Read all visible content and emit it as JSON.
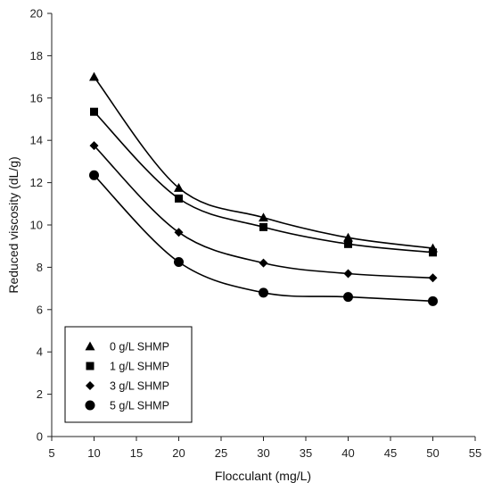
{
  "chart_data": {
    "type": "scatter",
    "xlabel": "Flocculant (mg/L)",
    "ylabel": "Reduced viscosity (dL/g)",
    "xlim": [
      5,
      55
    ],
    "ylim": [
      0,
      20
    ],
    "xticks": [
      5,
      10,
      15,
      20,
      25,
      30,
      35,
      40,
      45,
      50,
      55
    ],
    "yticks": [
      0,
      2,
      4,
      6,
      8,
      10,
      12,
      14,
      16,
      18,
      20
    ],
    "grid": false,
    "legend_position": "bottom-left",
    "x": [
      10,
      20,
      30,
      40,
      50
    ],
    "series": [
      {
        "name": "0 g/L SHMP",
        "marker": "triangle",
        "values": [
          17.0,
          11.75,
          10.35,
          9.4,
          8.9
        ]
      },
      {
        "name": "1 g/L SHMP",
        "marker": "square",
        "values": [
          15.35,
          11.25,
          9.9,
          9.1,
          8.7
        ]
      },
      {
        "name": "3 g/L SHMP",
        "marker": "diamond",
        "values": [
          13.75,
          9.65,
          8.2,
          7.7,
          7.5
        ]
      },
      {
        "name": "5 g/L SHMP",
        "marker": "circle",
        "values": [
          12.35,
          8.25,
          6.8,
          6.6,
          6.4
        ]
      }
    ],
    "colors": {
      "marks": "#000000",
      "axis": "#222222"
    }
  }
}
